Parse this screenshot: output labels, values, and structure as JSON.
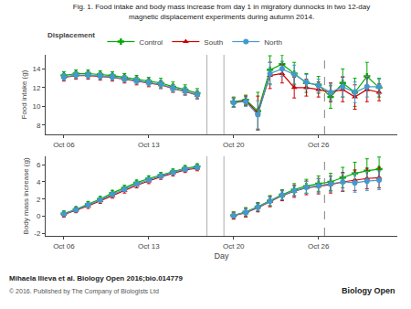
{
  "chart_data": [
    {
      "type": "line",
      "title": "Fig. 1. Food intake and body mass increase from day 1 in migratory dunnocks in two 12-day",
      "subtitle": "magnetic displacement experiments during autumn 2014.",
      "ylabel": "Food intake (g)",
      "x": [
        3,
        4,
        5,
        6,
        7,
        8,
        9,
        10,
        11,
        12,
        13,
        14,
        null,
        17,
        18,
        19,
        20,
        21,
        22,
        23,
        24,
        25,
        26,
        27,
        28,
        29
      ],
      "xlim": [
        1.5,
        30.5
      ],
      "xticks": [
        {
          "value": 3,
          "label": "Oct 06"
        },
        {
          "value": 10,
          "label": "Oct 13"
        },
        {
          "value": 17,
          "label": "Oct 20"
        },
        {
          "value": 24,
          "label": "Oct 26"
        }
      ],
      "ylim": [
        7,
        15.5
      ],
      "yticks": [
        8,
        10,
        12,
        14
      ],
      "grid": false,
      "legend": "top",
      "legend_title": "Displacement",
      "vlines": [
        {
          "x": 24.5,
          "line_style": "dashed",
          "color": "gray"
        }
      ],
      "bands": [
        {
          "x0": 14.8,
          "x1": 16.2,
          "color": "white",
          "edge_color": "#999999"
        }
      ],
      "series": [
        {
          "name": "Control",
          "color": "#00aa00",
          "marker": "plus",
          "values": [
            13.3,
            13.5,
            13.5,
            13.4,
            13.3,
            13.1,
            12.9,
            12.7,
            12.5,
            12.1,
            11.8,
            11.4,
            null,
            10.5,
            10.7,
            9.5,
            13.9,
            14.5,
            13.5,
            12.5,
            12.3,
            11.0,
            12.5,
            11.5,
            13.2,
            12.0
          ],
          "errors": [
            0.4,
            0.4,
            0.4,
            0.4,
            0.4,
            0.4,
            0.4,
            0.4,
            0.5,
            0.5,
            0.5,
            0.5,
            null,
            0.5,
            0.5,
            2.0,
            1.5,
            1.0,
            1.2,
            1.0,
            0.9,
            1.2,
            1.5,
            1.5,
            1.5,
            1.0
          ]
        },
        {
          "name": "South",
          "color": "#cc0000",
          "marker": "triangle",
          "values": [
            13.1,
            13.3,
            13.3,
            13.2,
            13.1,
            12.9,
            12.7,
            12.5,
            12.3,
            11.9,
            11.6,
            11.2,
            null,
            10.4,
            10.6,
            9.3,
            13.3,
            13.5,
            12.0,
            12.0,
            11.8,
            11.5,
            11.8,
            11.0,
            11.8,
            11.5
          ],
          "errors": [
            0.4,
            0.4,
            0.4,
            0.4,
            0.4,
            0.4,
            0.4,
            0.4,
            0.4,
            0.4,
            0.4,
            0.4,
            null,
            0.5,
            0.5,
            1.8,
            1.4,
            1.0,
            1.1,
            0.9,
            0.8,
            1.0,
            1.3,
            1.3,
            1.3,
            0.9
          ]
        },
        {
          "name": "North",
          "color": "#4499cc",
          "marker": "circle",
          "values": [
            13.15,
            13.35,
            13.35,
            13.25,
            13.15,
            12.95,
            12.75,
            12.55,
            12.35,
            11.95,
            11.65,
            11.25,
            null,
            10.4,
            10.5,
            9.1,
            13.5,
            14.0,
            13.4,
            12.6,
            12.2,
            11.5,
            12.1,
            11.5,
            12.1,
            12.1
          ],
          "errors": [
            0.35,
            0.35,
            0.35,
            0.35,
            0.35,
            0.35,
            0.35,
            0.35,
            0.4,
            0.4,
            0.4,
            0.4,
            null,
            0.5,
            0.5,
            1.5,
            1.2,
            0.8,
            1.0,
            0.8,
            0.7,
            0.9,
            1.1,
            1.1,
            1.1,
            0.8
          ]
        }
      ]
    },
    {
      "type": "line",
      "xlabel": "Day",
      "ylabel": "Body mass increase (g)",
      "x": [
        3,
        4,
        5,
        6,
        7,
        8,
        9,
        10,
        11,
        12,
        13,
        14,
        null,
        17,
        18,
        19,
        20,
        21,
        22,
        23,
        24,
        25,
        26,
        27,
        28,
        29
      ],
      "xlim": [
        1.5,
        30.5
      ],
      "xticks": [
        {
          "value": 3,
          "label": "Oct 06"
        },
        {
          "value": 10,
          "label": "Oct 13"
        },
        {
          "value": 17,
          "label": "Oct 20"
        },
        {
          "value": 24,
          "label": "Oct 26"
        }
      ],
      "ylim": [
        -2.3,
        7.0
      ],
      "yticks": [
        -2,
        0,
        2,
        4,
        6
      ],
      "grid": false,
      "vlines": [
        {
          "x": 24.5,
          "line_style": "dashed",
          "color": "gray"
        }
      ],
      "bands": [
        {
          "x0": 14.8,
          "x1": 16.2,
          "color": "white",
          "edge_color": "#999999"
        }
      ],
      "annotations": [
        "Mihaela Ilieva et al. Biology Open 2016;bio.014779",
        "© 2016. Published by The Company of Biologists Ltd",
        "Biology Open"
      ],
      "series": [
        {
          "name": "Control",
          "color": "#00aa00",
          "marker": "plus",
          "values": [
            0.3,
            0.8,
            1.4,
            2.0,
            2.7,
            3.3,
            3.9,
            4.4,
            4.8,
            5.2,
            5.6,
            5.8,
            null,
            0.1,
            0.5,
            1.1,
            1.8,
            2.5,
            3.1,
            3.5,
            3.8,
            4.0,
            4.5,
            5.0,
            5.3,
            5.5
          ],
          "errors": [
            0.3,
            0.3,
            0.3,
            0.3,
            0.3,
            0.3,
            0.3,
            0.3,
            0.3,
            0.3,
            0.3,
            0.3,
            null,
            0.4,
            0.5,
            0.5,
            0.6,
            0.6,
            0.7,
            0.8,
            0.9,
            1.0,
            1.2,
            1.3,
            1.4,
            1.4
          ]
        },
        {
          "name": "South",
          "color": "#cc0000",
          "marker": "triangle",
          "values": [
            0.2,
            0.7,
            1.2,
            1.8,
            2.4,
            3.0,
            3.6,
            4.1,
            4.6,
            5.0,
            5.4,
            5.6,
            null,
            0.05,
            0.4,
            1.0,
            1.7,
            2.4,
            2.9,
            3.3,
            3.5,
            3.7,
            4.0,
            4.2,
            4.4,
            4.5
          ],
          "errors": [
            0.3,
            0.3,
            0.3,
            0.3,
            0.3,
            0.3,
            0.3,
            0.3,
            0.3,
            0.3,
            0.3,
            0.3,
            null,
            0.4,
            0.5,
            0.5,
            0.6,
            0.6,
            0.7,
            0.8,
            0.9,
            1.0,
            1.1,
            1.2,
            1.2,
            1.2
          ]
        },
        {
          "name": "North",
          "color": "#4499cc",
          "marker": "circle",
          "values": [
            0.25,
            0.75,
            1.3,
            1.9,
            2.55,
            3.15,
            3.75,
            4.25,
            4.7,
            5.1,
            5.5,
            5.7,
            null,
            0.08,
            0.45,
            1.05,
            1.75,
            2.45,
            2.95,
            3.35,
            3.55,
            3.75,
            4.0,
            3.9,
            4.1,
            4.2
          ],
          "errors": [
            0.25,
            0.25,
            0.25,
            0.25,
            0.25,
            0.25,
            0.25,
            0.25,
            0.25,
            0.25,
            0.25,
            0.25,
            null,
            0.3,
            0.4,
            0.4,
            0.5,
            0.5,
            0.6,
            0.7,
            0.8,
            0.9,
            1.0,
            1.1,
            1.1,
            1.1
          ]
        }
      ]
    }
  ]
}
